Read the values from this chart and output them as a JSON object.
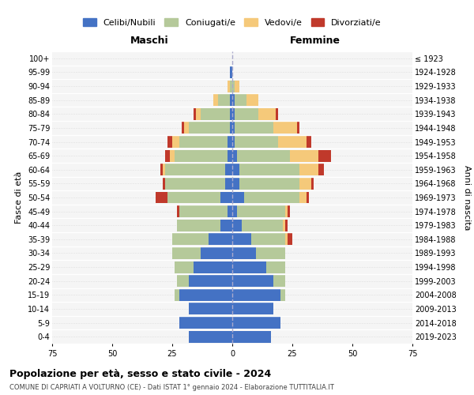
{
  "age_groups": [
    "0-4",
    "5-9",
    "10-14",
    "15-19",
    "20-24",
    "25-29",
    "30-34",
    "35-39",
    "40-44",
    "45-49",
    "50-54",
    "55-59",
    "60-64",
    "65-69",
    "70-74",
    "75-79",
    "80-84",
    "85-89",
    "90-94",
    "95-99",
    "100+"
  ],
  "birth_years": [
    "2019-2023",
    "2014-2018",
    "2009-2013",
    "2004-2008",
    "1999-2003",
    "1994-1998",
    "1989-1993",
    "1984-1988",
    "1979-1983",
    "1974-1978",
    "1969-1973",
    "1964-1968",
    "1959-1963",
    "1954-1958",
    "1949-1953",
    "1944-1948",
    "1939-1943",
    "1934-1938",
    "1929-1933",
    "1924-1928",
    "≤ 1923"
  ],
  "maschi": {
    "celibi": [
      18,
      22,
      18,
      22,
      18,
      16,
      13,
      10,
      5,
      2,
      5,
      3,
      3,
      2,
      2,
      1,
      1,
      1,
      0,
      1,
      0
    ],
    "coniugati": [
      0,
      0,
      0,
      2,
      5,
      8,
      12,
      15,
      18,
      20,
      22,
      25,
      25,
      22,
      20,
      17,
      12,
      5,
      1,
      0,
      0
    ],
    "vedovi": [
      0,
      0,
      0,
      0,
      0,
      0,
      0,
      0,
      0,
      0,
      0,
      0,
      1,
      2,
      3,
      2,
      2,
      2,
      1,
      0,
      0
    ],
    "divorziati": [
      0,
      0,
      0,
      0,
      0,
      0,
      0,
      0,
      0,
      1,
      5,
      1,
      1,
      2,
      2,
      1,
      1,
      0,
      0,
      0,
      0
    ]
  },
  "femmine": {
    "nubili": [
      16,
      20,
      17,
      20,
      17,
      14,
      10,
      8,
      4,
      2,
      5,
      3,
      3,
      2,
      1,
      1,
      1,
      1,
      0,
      0,
      0
    ],
    "coniugate": [
      0,
      0,
      0,
      2,
      5,
      8,
      12,
      14,
      17,
      20,
      23,
      25,
      25,
      22,
      18,
      16,
      10,
      5,
      1,
      0,
      0
    ],
    "vedove": [
      0,
      0,
      0,
      0,
      0,
      0,
      0,
      1,
      1,
      1,
      3,
      5,
      8,
      12,
      12,
      10,
      7,
      5,
      2,
      0,
      0
    ],
    "divorziate": [
      0,
      0,
      0,
      0,
      0,
      0,
      0,
      2,
      1,
      1,
      1,
      1,
      2,
      5,
      2,
      1,
      1,
      0,
      0,
      0,
      0
    ]
  },
  "colors": {
    "celibi": "#4472C4",
    "coniugati": "#b5c99a",
    "vedovi": "#f5c97a",
    "divorziati": "#c0392b"
  },
  "xlim": 75,
  "title": "Popolazione per età, sesso e stato civile - 2024",
  "subtitle": "COMUNE DI CAPRIATI A VOLTURNO (CE) - Dati ISTAT 1° gennaio 2024 - Elaborazione TUTTITALIA.IT",
  "ylabel": "Fasce di età",
  "right_ylabel": "Anni di nascita",
  "legend_labels": [
    "Celibi/Nubili",
    "Coniugati/e",
    "Vedovi/e",
    "Divorziati/e"
  ]
}
